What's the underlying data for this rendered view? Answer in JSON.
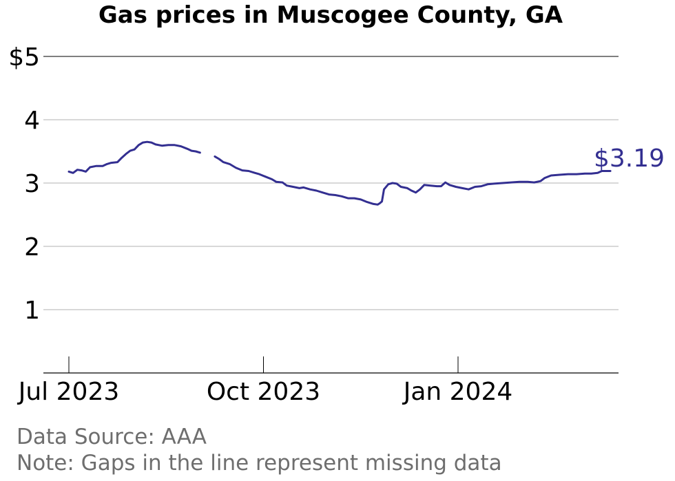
{
  "chart_data": {
    "type": "line",
    "title": "Gas prices in Muscogee County, GA",
    "xlabel": "",
    "ylabel": "",
    "ylim": [
      0,
      5
    ],
    "y_ticks": [
      {
        "value": 5,
        "label": "$5"
      },
      {
        "value": 4,
        "label": "4"
      },
      {
        "value": 3,
        "label": "3"
      },
      {
        "value": 2,
        "label": "2"
      },
      {
        "value": 1,
        "label": "1"
      }
    ],
    "x_ticks": [
      {
        "date": "2023-07-01",
        "label": "Jul 2023"
      },
      {
        "date": "2023-10-01",
        "label": "Oct 2023"
      },
      {
        "date": "2024-01-01",
        "label": "Jan 2024"
      }
    ],
    "grid": true,
    "line_color": "#332f91",
    "end_label": "$3.19",
    "series": [
      {
        "segments": [
          [
            [
              "2023-07-01",
              3.18
            ],
            [
              "2023-07-03",
              3.16
            ],
            [
              "2023-07-05",
              3.21
            ],
            [
              "2023-07-07",
              3.2
            ],
            [
              "2023-07-09",
              3.18
            ],
            [
              "2023-07-11",
              3.25
            ],
            [
              "2023-07-14",
              3.27
            ],
            [
              "2023-07-17",
              3.27
            ],
            [
              "2023-07-19",
              3.3
            ],
            [
              "2023-07-21",
              3.32
            ],
            [
              "2023-07-24",
              3.33
            ],
            [
              "2023-07-26",
              3.4
            ],
            [
              "2023-07-28",
              3.46
            ],
            [
              "2023-07-30",
              3.51
            ],
            [
              "2023-08-01",
              3.53
            ],
            [
              "2023-08-03",
              3.6
            ],
            [
              "2023-08-05",
              3.64
            ],
            [
              "2023-08-07",
              3.65
            ],
            [
              "2023-08-09",
              3.64
            ],
            [
              "2023-08-11",
              3.61
            ],
            [
              "2023-08-14",
              3.59
            ],
            [
              "2023-08-17",
              3.6
            ],
            [
              "2023-08-20",
              3.6
            ],
            [
              "2023-08-23",
              3.58
            ],
            [
              "2023-08-26",
              3.54
            ],
            [
              "2023-08-28",
              3.51
            ],
            [
              "2023-08-30",
              3.5
            ],
            [
              "2023-09-01",
              3.48
            ]
          ],
          [
            [
              "2023-09-08",
              3.42
            ],
            [
              "2023-09-10",
              3.38
            ],
            [
              "2023-09-12",
              3.33
            ],
            [
              "2023-09-15",
              3.3
            ],
            [
              "2023-09-18",
              3.24
            ],
            [
              "2023-09-21",
              3.2
            ],
            [
              "2023-09-24",
              3.19
            ],
            [
              "2023-09-27",
              3.16
            ],
            [
              "2023-09-29",
              3.14
            ],
            [
              "2023-10-02",
              3.1
            ],
            [
              "2023-10-05",
              3.06
            ],
            [
              "2023-10-07",
              3.02
            ],
            [
              "2023-10-10",
              3.01
            ],
            [
              "2023-10-12",
              2.96
            ],
            [
              "2023-10-15",
              2.94
            ],
            [
              "2023-10-18",
              2.92
            ],
            [
              "2023-10-20",
              2.93
            ],
            [
              "2023-10-23",
              2.9
            ],
            [
              "2023-10-26",
              2.88
            ],
            [
              "2023-10-29",
              2.85
            ],
            [
              "2023-11-01",
              2.82
            ],
            [
              "2023-11-04",
              2.81
            ],
            [
              "2023-11-07",
              2.79
            ],
            [
              "2023-11-10",
              2.76
            ],
            [
              "2023-11-13",
              2.76
            ],
            [
              "2023-11-16",
              2.74
            ],
            [
              "2023-11-19",
              2.7
            ],
            [
              "2023-11-22",
              2.67
            ],
            [
              "2023-11-24",
              2.66
            ],
            [
              "2023-11-25",
              2.68
            ],
            [
              "2023-11-26",
              2.71
            ],
            [
              "2023-11-27",
              2.9
            ],
            [
              "2023-11-29",
              2.98
            ],
            [
              "2023-12-01",
              3.0
            ],
            [
              "2023-12-03",
              2.99
            ],
            [
              "2023-12-05",
              2.94
            ],
            [
              "2023-12-08",
              2.92
            ],
            [
              "2023-12-10",
              2.88
            ],
            [
              "2023-12-12",
              2.85
            ],
            [
              "2023-12-14",
              2.9
            ],
            [
              "2023-12-16",
              2.97
            ],
            [
              "2023-12-19",
              2.96
            ],
            [
              "2023-12-22",
              2.95
            ],
            [
              "2023-12-24",
              2.95
            ],
            [
              "2023-12-26",
              3.01
            ],
            [
              "2023-12-28",
              2.97
            ],
            [
              "2023-12-31",
              2.94
            ],
            [
              "2024-01-03",
              2.92
            ],
            [
              "2024-01-06",
              2.9
            ],
            [
              "2024-01-09",
              2.94
            ],
            [
              "2024-01-12",
              2.95
            ],
            [
              "2024-01-15",
              2.98
            ],
            [
              "2024-01-18",
              2.99
            ],
            [
              "2024-01-22",
              3.0
            ],
            [
              "2024-01-26",
              3.01
            ],
            [
              "2024-01-30",
              3.02
            ],
            [
              "2024-02-03",
              3.02
            ],
            [
              "2024-02-06",
              3.01
            ],
            [
              "2024-02-09",
              3.03
            ],
            [
              "2024-02-11",
              3.08
            ],
            [
              "2024-02-14",
              3.12
            ],
            [
              "2024-02-18",
              3.13
            ],
            [
              "2024-02-22",
              3.14
            ],
            [
              "2024-02-26",
              3.14
            ],
            [
              "2024-03-01",
              3.15
            ],
            [
              "2024-03-04",
              3.15
            ],
            [
              "2024-03-07",
              3.16
            ],
            [
              "2024-03-09",
              3.19
            ],
            [
              "2024-03-13",
              3.19
            ]
          ]
        ]
      }
    ]
  },
  "source": "Data Source: AAA",
  "note": "Note: Gaps in the line represent missing data"
}
